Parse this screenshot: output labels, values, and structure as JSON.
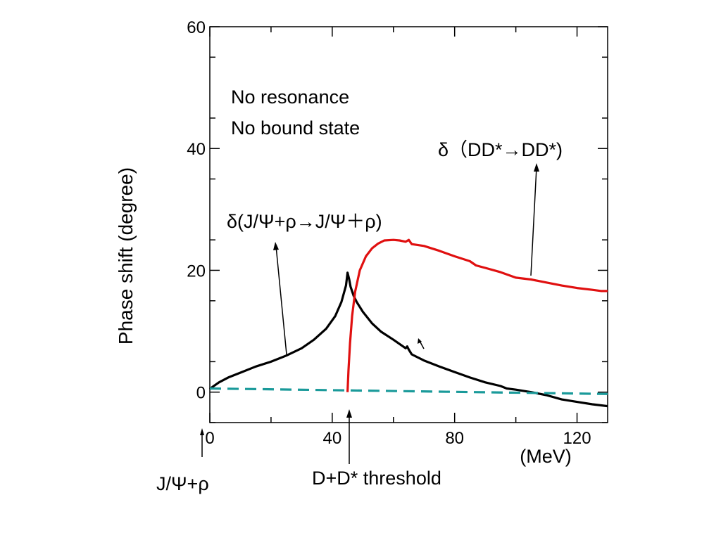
{
  "chart_data": {
    "type": "line",
    "xlabel": "(MeV)",
    "ylabel": "Phase shift (degree)",
    "xlim": [
      0,
      130
    ],
    "ylim": [
      -5,
      60
    ],
    "x_ticks": [
      0,
      40,
      80,
      120
    ],
    "y_ticks": [
      0,
      20,
      40,
      60
    ],
    "x_tick_labels": [
      "0",
      "40",
      "80",
      "120"
    ],
    "y_tick_labels": [
      "0",
      "20",
      "40",
      "60"
    ],
    "grid": false,
    "series": [
      {
        "name": "δ(J/Ψ+ρ→J/Ψ＋ρ)",
        "color": "#000000",
        "style": "solid",
        "x": [
          0,
          1,
          3,
          6,
          10,
          15,
          20,
          25,
          30,
          34,
          38,
          41,
          43,
          44.5,
          45,
          45.5,
          46,
          47,
          48,
          50,
          53,
          56,
          60,
          64,
          64.5,
          65,
          66,
          70,
          75,
          80,
          85,
          90,
          95,
          97,
          100,
          105,
          110,
          115,
          120,
          125,
          130
        ],
        "y": [
          0.5,
          0.9,
          1.6,
          2.4,
          3.2,
          4.2,
          5.0,
          6.0,
          7.2,
          8.6,
          10.4,
          12.5,
          14.8,
          17.5,
          19.6,
          18.6,
          17.3,
          15.8,
          14.8,
          13.2,
          11.3,
          9.9,
          8.6,
          7.2,
          7.5,
          7.0,
          6.2,
          5.2,
          4.2,
          3.3,
          2.4,
          1.6,
          1.0,
          0.6,
          0.4,
          0.0,
          -0.5,
          -1.2,
          -1.6,
          -2.0,
          -2.3
        ]
      },
      {
        "name": "δ（DD*→DD*)",
        "color": "#e01010",
        "style": "solid",
        "x": [
          45,
          45.3,
          45.8,
          46.5,
          47.5,
          49,
          51,
          53,
          55,
          57,
          60,
          62,
          64,
          65,
          66,
          70,
          75,
          80,
          85,
          87,
          90,
          95,
          100,
          105,
          110,
          115,
          120,
          125,
          128,
          130
        ],
        "y": [
          0,
          3.5,
          8.0,
          12.5,
          16.5,
          20.0,
          22.3,
          23.6,
          24.4,
          24.9,
          25.0,
          24.9,
          24.7,
          25.0,
          24.3,
          24.0,
          23.2,
          22.3,
          21.5,
          20.8,
          20.4,
          19.7,
          18.8,
          18.5,
          18.0,
          17.5,
          17.1,
          16.8,
          16.6,
          16.6
        ]
      },
      {
        "name": "",
        "color": "#1a9a9a",
        "style": "dashed",
        "x": [
          0,
          130
        ],
        "y": [
          0.6,
          -0.3
        ]
      }
    ],
    "annotations": {
      "no_resonance": "No resonance",
      "no_bound_state": "No bound state",
      "dd_label": "δ（DD*→DD*)",
      "jpsi_label": "δ(J/Ψ+ρ→J/Ψ＋ρ)",
      "dd_threshold": "D+D* threshold",
      "jpsi_threshold": "J/Ψ+ρ"
    }
  }
}
